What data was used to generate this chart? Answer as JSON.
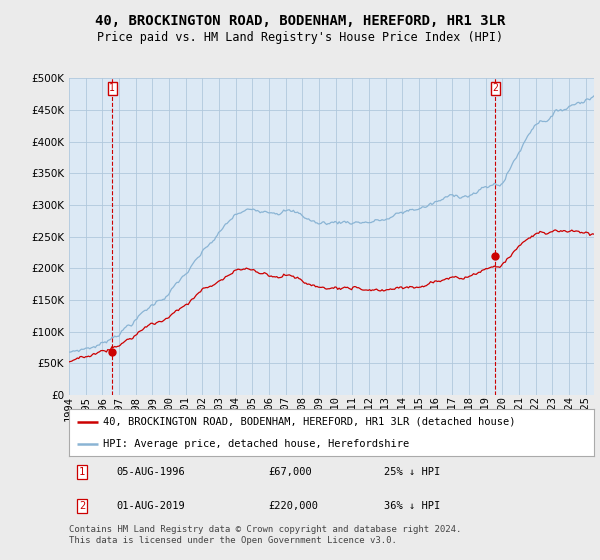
{
  "title": "40, BROCKINGTON ROAD, BODENHAM, HEREFORD, HR1 3LR",
  "subtitle": "Price paid vs. HM Land Registry's House Price Index (HPI)",
  "ylim": [
    0,
    500000
  ],
  "yticks": [
    0,
    50000,
    100000,
    150000,
    200000,
    250000,
    300000,
    350000,
    400000,
    450000,
    500000
  ],
  "xlim_start": 1994.0,
  "xlim_end": 2025.5,
  "hpi_color": "#8ab4d4",
  "price_color": "#cc0000",
  "vline_color": "#cc0000",
  "background_color": "#ebebeb",
  "plot_bg_color": "#dce9f5",
  "grid_color": "#b0c8dc",
  "legend_label_price": "40, BROCKINGTON ROAD, BODENHAM, HEREFORD, HR1 3LR (detached house)",
  "legend_label_hpi": "HPI: Average price, detached house, Herefordshire",
  "sale1_date": 1996.59,
  "sale1_price": 67000,
  "sale1_label": "05-AUG-1996",
  "sale1_amount": "£67,000",
  "sale1_pct": "25% ↓ HPI",
  "sale2_date": 2019.58,
  "sale2_price": 220000,
  "sale2_label": "01-AUG-2019",
  "sale2_amount": "£220,000",
  "sale2_pct": "36% ↓ HPI",
  "footer": "Contains HM Land Registry data © Crown copyright and database right 2024.\nThis data is licensed under the Open Government Licence v3.0.",
  "title_fontsize": 10,
  "subtitle_fontsize": 8.5,
  "tick_fontsize": 7.5,
  "legend_fontsize": 7.5,
  "footer_fontsize": 6.5
}
